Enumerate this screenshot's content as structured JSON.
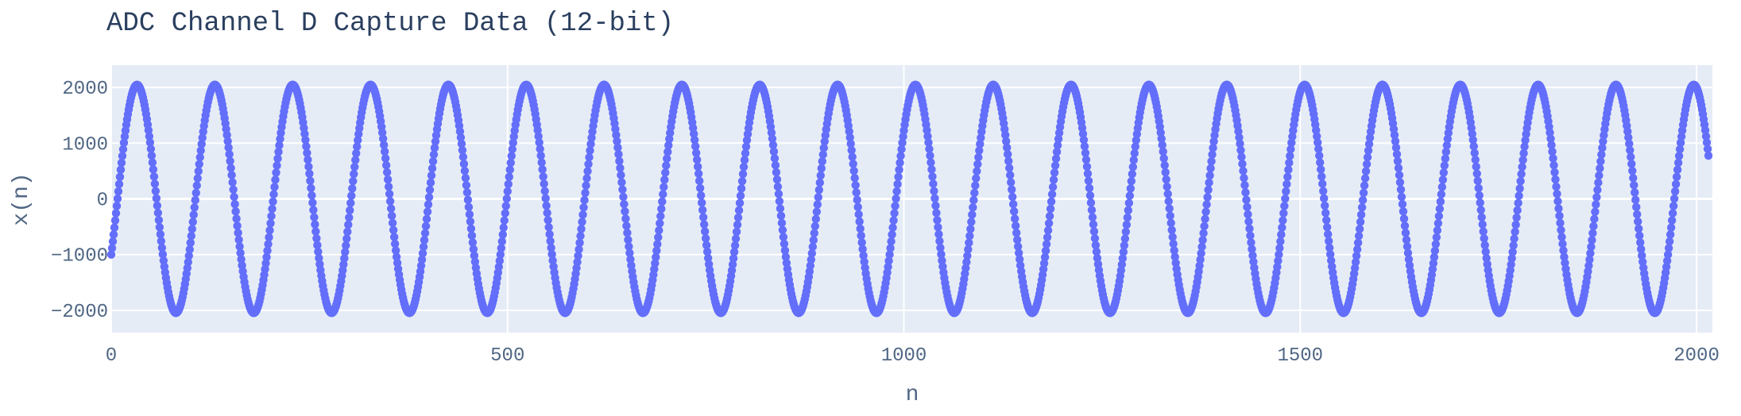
{
  "chart_data": {
    "type": "scatter",
    "title": "ADC Channel D Capture Data (12-bit)",
    "xlabel": "n",
    "ylabel": "x(n)",
    "xlim": [
      0,
      2020
    ],
    "ylim": [
      -2400,
      2400
    ],
    "x_ticks": [
      0,
      500,
      1000,
      1500,
      2000
    ],
    "x_tick_labels": [
      "0",
      "500",
      "1000",
      "1500",
      "2000"
    ],
    "y_ticks": [
      -2000,
      -1000,
      0,
      1000,
      2000
    ],
    "y_tick_labels": [
      "−2000",
      "−1000",
      "0",
      "1000",
      "2000"
    ],
    "grid": true,
    "series": [
      {
        "n_start": 0,
        "n_end": 2015,
        "amplitude": 2048,
        "period_samples": 98.2,
        "value_at_n0": -1000,
        "color": "#636efa"
      }
    ]
  },
  "colors": {
    "plot_background": "#e5ecf6",
    "gridline": "#ffffff",
    "marker": "#636efa",
    "title_text": "#2a3f5f",
    "tick_text": "#506784"
  }
}
